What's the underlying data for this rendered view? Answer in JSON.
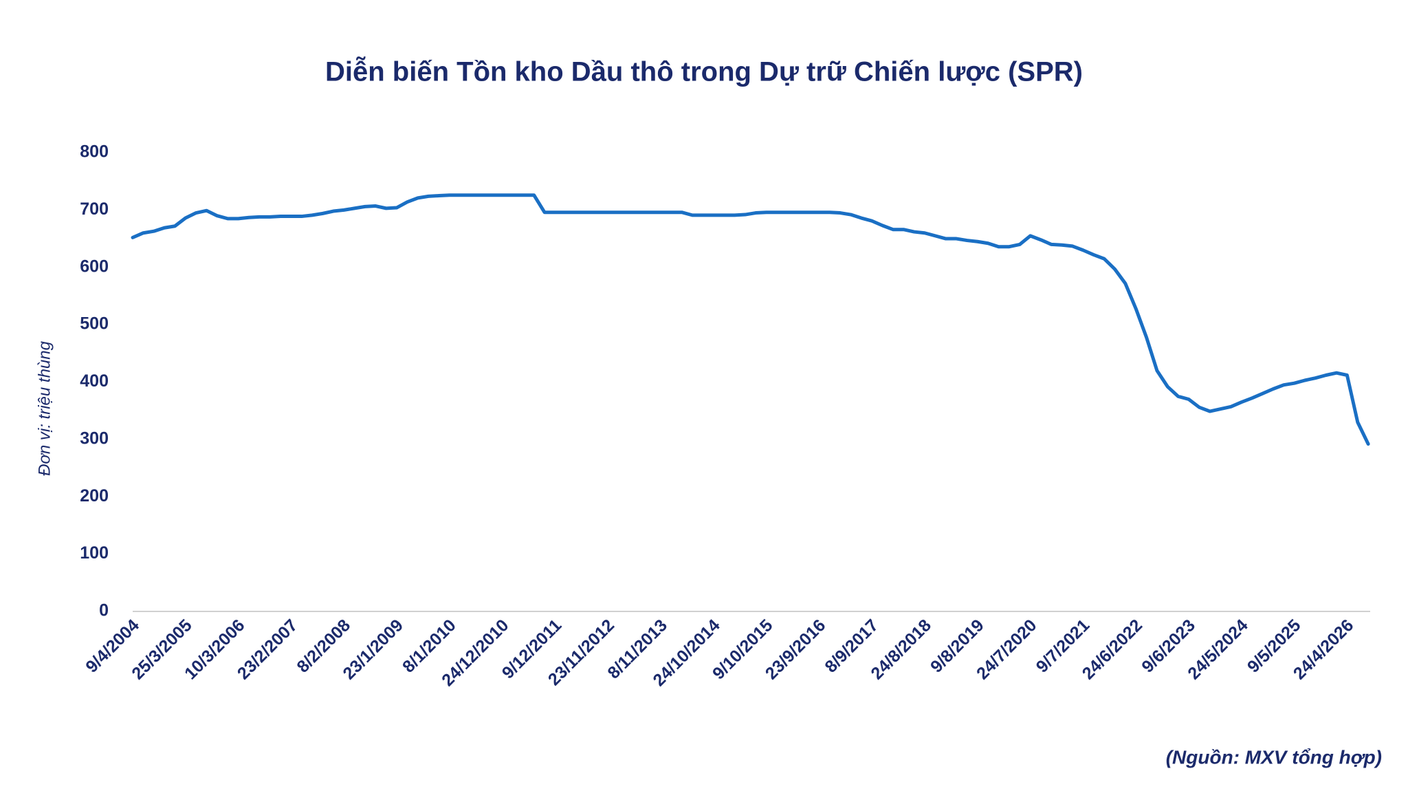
{
  "chart_data": {
    "type": "line",
    "title": "Diễn biến Tồn kho Dầu thô trong Dự trữ Chiến lược (SPR)",
    "y_label": "Đơn vị: triệu thùng",
    "source": "(Nguồn: MXV tổng hợp)",
    "x": [
      "9/4/2004",
      null,
      null,
      null,
      null,
      "25/3/2005",
      null,
      null,
      null,
      null,
      "10/3/2006",
      null,
      null,
      null,
      null,
      "23/2/2007",
      null,
      null,
      null,
      null,
      "8/2/2008",
      null,
      null,
      null,
      null,
      "23/1/2009",
      null,
      null,
      null,
      null,
      "8/1/2010",
      null,
      null,
      null,
      null,
      "24/12/2010",
      null,
      null,
      null,
      null,
      "9/12/2011",
      null,
      null,
      null,
      null,
      "23/11/2012",
      null,
      null,
      null,
      null,
      "8/11/2013",
      null,
      null,
      null,
      null,
      "24/10/2014",
      null,
      null,
      null,
      null,
      "9/10/2015",
      null,
      null,
      null,
      null,
      "23/9/2016",
      null,
      null,
      null,
      null,
      "8/9/2017",
      null,
      null,
      null,
      null,
      "24/8/2018",
      null,
      null,
      null,
      null,
      "9/8/2019",
      null,
      null,
      null,
      null,
      "24/7/2020",
      null,
      null,
      null,
      null,
      "9/7/2021",
      null,
      null,
      null,
      null,
      "24/6/2022",
      null,
      null,
      null,
      null,
      "9/6/2023",
      null,
      null,
      null,
      null,
      "24/5/2024",
      null,
      null,
      null,
      null,
      "9/5/2025",
      null,
      null,
      null,
      null,
      "24/4/2026",
      null,
      null
    ],
    "values": [
      652,
      660,
      663,
      669,
      672,
      686,
      695,
      699,
      690,
      685,
      685,
      687,
      688,
      688,
      689,
      689,
      689,
      691,
      694,
      698,
      700,
      703,
      706,
      707,
      703,
      704,
      714,
      721,
      724,
      725,
      726,
      726,
      726,
      726,
      726,
      726,
      726,
      726,
      726,
      696,
      696,
      696,
      696,
      696,
      696,
      696,
      696,
      696,
      696,
      696,
      696,
      696,
      696,
      691,
      691,
      691,
      691,
      691,
      692,
      695,
      696,
      696,
      696,
      696,
      696,
      696,
      696,
      695,
      692,
      686,
      681,
      673,
      666,
      666,
      662,
      660,
      655,
      650,
      650,
      647,
      645,
      642,
      636,
      636,
      640,
      655,
      648,
      640,
      639,
      637,
      630,
      622,
      615,
      597,
      572,
      528,
      478,
      420,
      392,
      375,
      370,
      356,
      349,
      353,
      357,
      365,
      372,
      380,
      388,
      395,
      398,
      403,
      407,
      412,
      416,
      412,
      330,
      292
    ],
    "color": "#1a6fc4",
    "ylim": [
      0,
      800
    ],
    "yticks": [
      0,
      100,
      200,
      300,
      400,
      500,
      600,
      700,
      800
    ],
    "grid": false
  }
}
